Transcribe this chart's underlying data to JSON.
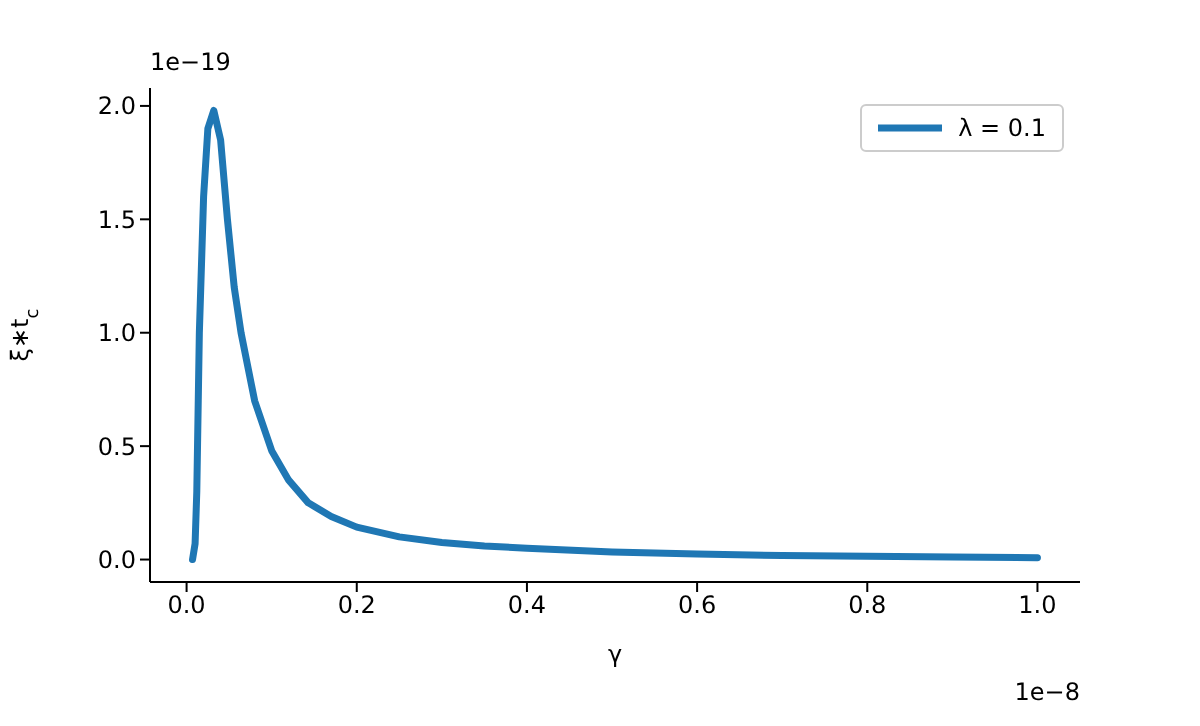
{
  "chart_data": {
    "type": "line",
    "xlabel": "γ",
    "ylabel": "ξ∗t$_{c}$",
    "annotations": [
      "1e−19",
      "1e−8"
    ],
    "x": [
      0.007,
      0.01,
      0.012,
      0.015,
      0.02,
      0.025,
      0.032,
      0.04,
      0.048,
      0.056,
      0.064,
      0.08,
      0.1,
      0.12,
      0.143,
      0.17,
      0.2,
      0.25,
      0.3,
      0.35,
      0.4,
      0.5,
      0.6,
      0.7,
      0.8,
      0.9,
      1.0
    ],
    "series": [
      {
        "name": "λ = 0.1",
        "color": "#1f77b4",
        "values": [
          0,
          0.07,
          0.3,
          1.0,
          1.6,
          1.9,
          1.98,
          1.85,
          1.5,
          1.2,
          1.0,
          0.7,
          0.48,
          0.35,
          0.25,
          0.19,
          0.143,
          0.1,
          0.075,
          0.06,
          0.05,
          0.033,
          0.024,
          0.018,
          0.014,
          0.011,
          0.008
        ]
      }
    ],
    "xlim": [
      -0.043,
      1.05
    ],
    "ylim": [
      -0.099,
      2.079
    ],
    "xticks": [
      {
        "value": 0,
        "label": "0.0"
      },
      0.2,
      0.4,
      0.6,
      0.8,
      {
        "value": 1,
        "label": "1.0"
      }
    ],
    "yticks": [
      {
        "value": 0,
        "label": "0.0"
      },
      0.5,
      {
        "value": 1,
        "label": "1.0"
      },
      1.5,
      {
        "value": 2,
        "label": "2.0"
      }
    ],
    "legend": "top right",
    "marker": "none",
    "line_style": "solid",
    "grid": false
  }
}
